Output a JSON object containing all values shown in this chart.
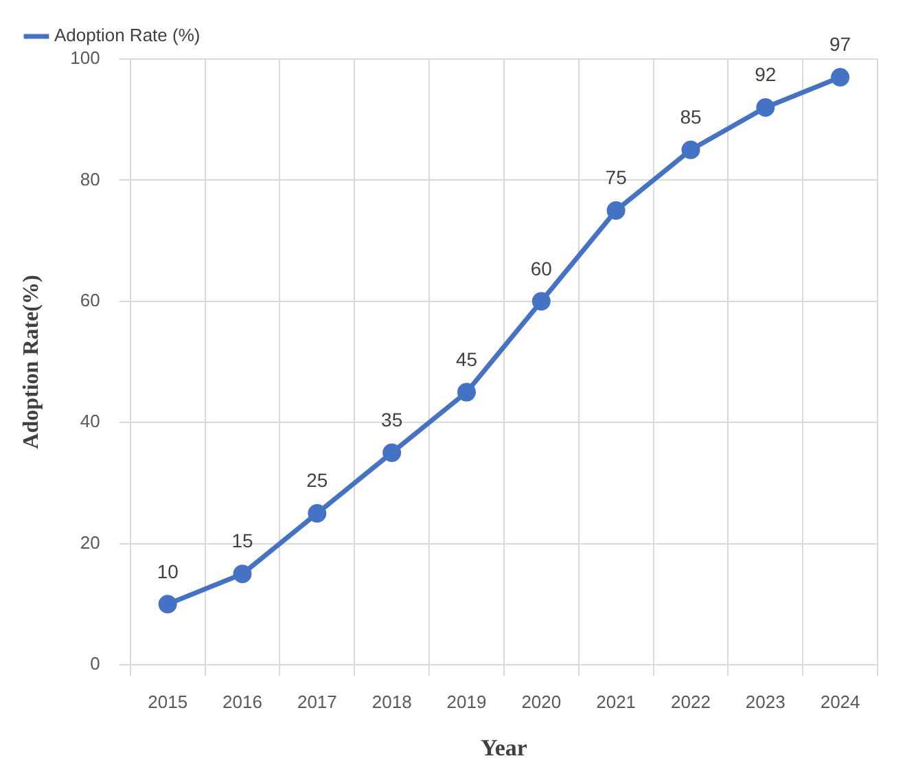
{
  "chart_data": {
    "type": "line",
    "xlabel": "Year",
    "ylabel": "Adoption Rate(%)",
    "categories": [
      "2015",
      "2016",
      "2017",
      "2018",
      "2019",
      "2020",
      "2021",
      "2022",
      "2023",
      "2024"
    ],
    "series": [
      {
        "name": "Adoption Rate (%)",
        "color": "#4472c4",
        "values": [
          10,
          15,
          25,
          35,
          45,
          60,
          75,
          85,
          92,
          97
        ]
      }
    ],
    "ylim": [
      0,
      100
    ],
    "yticks": [
      0,
      20,
      40,
      60,
      80,
      100
    ],
    "grid": true,
    "legend": "top left",
    "marker": "circle",
    "line_style": "solid",
    "data_labels": true
  }
}
